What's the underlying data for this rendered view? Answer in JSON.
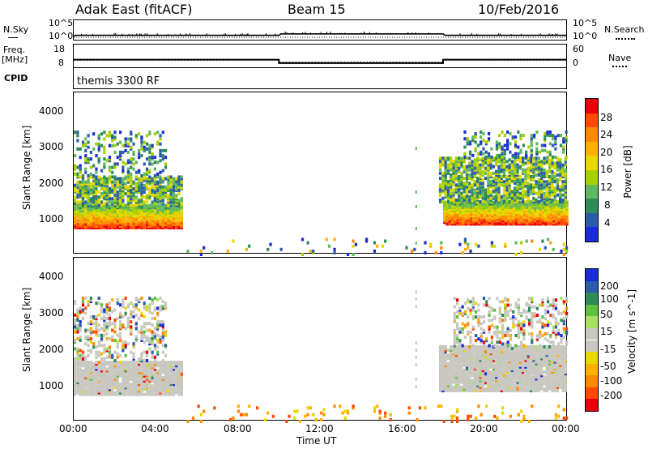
{
  "header": {
    "station": "Adak East (fitACF)",
    "beam": "Beam 15",
    "date": "10/Feb/2016"
  },
  "strip_labels": {
    "nsky": "N.Sky",
    "nsky_ticks": [
      "10^5",
      "10^0"
    ],
    "nsearch": "N.Search",
    "nsearch_ticks": [
      "10^5",
      "10^0"
    ],
    "freq_top": "Freq.",
    "freq_unit": "[MHz]",
    "freq_ticks": [
      "18",
      "8"
    ],
    "nave": "Nave",
    "nave_ticks": [
      "60",
      "0"
    ],
    "cpid": "CPID",
    "cpid_value": "themis 3300 RF"
  },
  "range_axis": {
    "label": "Slant Range [km]",
    "ticks": [
      "4000",
      "3000",
      "2000",
      "1000"
    ]
  },
  "time_axis": {
    "label": "Time UT",
    "ticks": [
      "00:00",
      "04:00",
      "08:00",
      "12:00",
      "16:00",
      "20:00",
      "00:00"
    ]
  },
  "power_colorbar": {
    "label": "Power [dB]",
    "ticks": [
      "28",
      "24",
      "20",
      "16",
      "12",
      "8",
      "4"
    ],
    "colors": [
      "#e8000b",
      "#ff4a00",
      "#ff8a00",
      "#ffb000",
      "#e8d800",
      "#a8d000",
      "#60b860",
      "#2e8b57",
      "#2a5caa",
      "#1a2bd8"
    ]
  },
  "velocity_colorbar": {
    "label": "Velocity [m s^-1]",
    "ticks": [
      "200",
      "100",
      "50",
      "15",
      "-15",
      "-50",
      "-100",
      "-200"
    ],
    "colors": [
      "#1a2bd8",
      "#2a5caa",
      "#2e8b57",
      "#60c040",
      "#a8e060",
      "#c8c8c0",
      "#c8c8c0",
      "#e8d800",
      "#ffb000",
      "#ff8a00",
      "#ff4a00",
      "#e8000b"
    ]
  },
  "chart_data": [
    {
      "type": "line",
      "title": "N.Sky / N.Search",
      "x_range_hours": [
        0,
        24
      ],
      "ylim_log10": [
        0,
        5
      ],
      "series": [
        {
          "name": "N.Sky",
          "x": [
            0,
            0.1,
            10,
            10.1,
            18,
            18.1,
            24
          ],
          "y_log10": [
            0.8,
            1.0,
            1.0,
            1.4,
            1.4,
            1.0,
            1.0
          ]
        }
      ]
    },
    {
      "type": "line",
      "title": "Freq. / Nave",
      "x_range_hours": [
        0,
        24
      ],
      "ylim_freq_mhz": [
        8,
        18
      ],
      "ylim_nave": [
        0,
        60
      ],
      "series": [
        {
          "name": "Freq.",
          "x": [
            0,
            10,
            10,
            18,
            18,
            24
          ],
          "y": [
            11.2,
            11.2,
            9.6,
            9.6,
            11.2,
            11.2
          ]
        },
        {
          "name": "Nave",
          "x": [
            0,
            10,
            10,
            18,
            18,
            24
          ],
          "y": [
            18,
            18,
            12,
            12,
            18,
            18
          ]
        }
      ]
    },
    {
      "type": "heatmap",
      "title": "Power [dB]",
      "x_range_hours": [
        0,
        24
      ],
      "ylim_km": [
        180,
        4500
      ],
      "zlim_db": [
        0,
        30
      ],
      "regions": [
        {
          "t": [
            0.0,
            5.2
          ],
          "range_km": [
            900,
            1500
          ],
          "level": "high"
        },
        {
          "t": [
            0.0,
            5.2
          ],
          "range_km": [
            1500,
            2300
          ],
          "level": "medium"
        },
        {
          "t": [
            0.0,
            4.5
          ],
          "range_km": [
            2300,
            3500
          ],
          "level": "scattered"
        },
        {
          "t": [
            18.0,
            24.0
          ],
          "range_km": [
            1000,
            1600
          ],
          "level": "high"
        },
        {
          "t": [
            17.8,
            24.0
          ],
          "range_km": [
            1600,
            2800
          ],
          "level": "medium"
        },
        {
          "t": [
            19.0,
            24.0
          ],
          "range_km": [
            2800,
            3500
          ],
          "level": "scattered"
        },
        {
          "t": [
            5.5,
            24.0
          ],
          "range_km": [
            180,
            600
          ],
          "level": "low"
        }
      ]
    },
    {
      "type": "heatmap",
      "title": "Velocity [m s^-1]",
      "x_range_hours": [
        0,
        24
      ],
      "ylim_km": [
        180,
        4500
      ],
      "zlim_ms": [
        -250,
        250
      ],
      "regions": [
        {
          "t": [
            0.0,
            5.2
          ],
          "range_km": [
            900,
            1800
          ],
          "level": "ground-scatter"
        },
        {
          "t": [
            0.0,
            4.5
          ],
          "range_km": [
            1800,
            3500
          ],
          "level": "mixed"
        },
        {
          "t": [
            17.8,
            24.0
          ],
          "range_km": [
            1000,
            2200
          ],
          "level": "ground-scatter"
        },
        {
          "t": [
            18.5,
            24.0
          ],
          "range_km": [
            2200,
            3500
          ],
          "level": "mixed"
        },
        {
          "t": [
            5.5,
            24.0
          ],
          "range_km": [
            180,
            600
          ],
          "level": "weak-negative"
        }
      ]
    }
  ]
}
